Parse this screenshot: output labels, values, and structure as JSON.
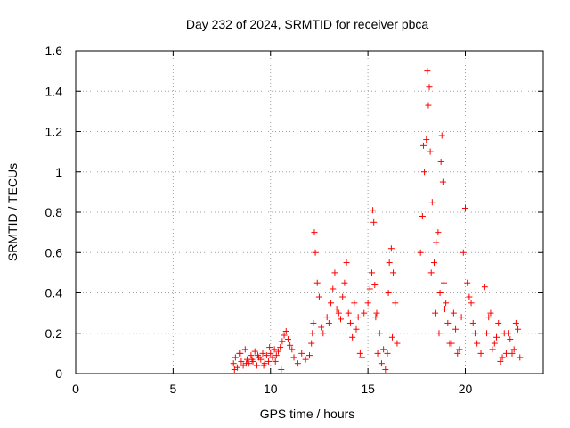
{
  "chart_data": {
    "type": "scatter",
    "title": "Day 232 of 2024, SRMTID for receiver pbca",
    "xlabel": "GPS time / hours",
    "ylabel": "SRMTID / TECUs",
    "xlim": [
      0,
      24
    ],
    "ylim": [
      0,
      1.6
    ],
    "xticks": [
      0,
      5,
      10,
      15,
      20
    ],
    "xtick_labels": [
      "0",
      "5",
      "10",
      "15",
      "20"
    ],
    "yticks": [
      0,
      0.2,
      0.4,
      0.6,
      0.8,
      1,
      1.2,
      1.4,
      1.6
    ],
    "ytick_labels": [
      "0",
      "0.2",
      "0.4",
      "0.6",
      "0.8",
      "1",
      "1.2",
      "1.4",
      "1.6"
    ],
    "grid": true,
    "marker": "+",
    "color": "#ff0000",
    "series": [
      {
        "name": "pbca",
        "x": [
          8.1,
          8.2,
          8.3,
          8.4,
          8.5,
          8.6,
          8.7,
          8.8,
          8.9,
          9.0,
          9.1,
          9.2,
          9.3,
          9.4,
          9.5,
          9.6,
          9.7,
          9.8,
          9.9,
          10.0,
          10.1,
          10.2,
          10.3,
          10.4,
          10.5,
          10.6,
          10.7,
          10.8,
          10.9,
          11.0,
          11.1,
          11.2,
          11.4,
          11.6,
          11.8,
          12.0,
          12.1,
          12.2,
          12.25,
          12.3,
          12.4,
          12.5,
          12.7,
          12.9,
          13.0,
          13.1,
          13.2,
          13.3,
          13.5,
          13.7,
          13.8,
          13.9,
          14.0,
          14.1,
          14.2,
          14.4,
          14.6,
          14.8,
          15.0,
          15.1,
          15.2,
          15.25,
          15.3,
          15.4,
          15.5,
          15.6,
          15.7,
          15.8,
          15.9,
          16.0,
          16.1,
          16.2,
          16.3,
          16.4,
          16.5,
          17.7,
          17.8,
          17.85,
          17.9,
          18.0,
          18.05,
          18.1,
          18.15,
          18.2,
          18.3,
          18.4,
          18.5,
          18.6,
          18.7,
          18.75,
          18.8,
          18.85,
          18.9,
          19.0,
          19.2,
          19.4,
          19.6,
          19.8,
          19.9,
          20.0,
          20.1,
          20.2,
          20.4,
          20.6,
          20.8,
          21.0,
          21.1,
          21.3,
          21.5,
          21.7,
          21.9,
          22.0,
          22.1,
          22.3,
          22.5,
          22.6,
          22.7,
          22.8,
          8.15,
          8.45,
          8.75,
          9.05,
          9.35,
          9.65,
          9.95,
          10.25,
          10.55,
          12.15,
          12.6,
          13.4,
          13.6,
          14.3,
          14.5,
          14.7,
          15.35,
          15.45,
          16.05,
          16.25,
          18.25,
          18.45,
          18.65,
          18.95,
          19.1,
          19.3,
          19.5,
          19.7,
          20.3,
          20.5,
          21.2,
          21.4,
          21.6,
          21.8,
          22.2,
          22.4
        ],
        "y": [
          0.05,
          0.08,
          0.03,
          0.1,
          0.06,
          0.04,
          0.12,
          0.07,
          0.05,
          0.09,
          0.06,
          0.11,
          0.04,
          0.08,
          0.07,
          0.1,
          0.05,
          0.09,
          0.06,
          0.1,
          0.08,
          0.12,
          0.09,
          0.11,
          0.13,
          0.16,
          0.19,
          0.21,
          0.17,
          0.14,
          0.12,
          0.08,
          0.05,
          0.1,
          0.07,
          0.09,
          0.15,
          0.25,
          0.7,
          0.6,
          0.45,
          0.38,
          0.2,
          0.28,
          0.25,
          0.35,
          0.42,
          0.5,
          0.3,
          0.38,
          0.45,
          0.55,
          0.3,
          0.25,
          0.18,
          0.22,
          0.1,
          0.3,
          0.35,
          0.42,
          0.5,
          0.81,
          0.75,
          0.28,
          0.1,
          0.2,
          0.05,
          0.12,
          0.02,
          0.1,
          0.55,
          0.62,
          0.5,
          0.35,
          0.15,
          0.6,
          0.78,
          1.13,
          1.0,
          1.16,
          1.5,
          1.33,
          1.42,
          1.1,
          0.85,
          0.55,
          0.65,
          0.7,
          0.4,
          1.05,
          1.18,
          0.95,
          0.45,
          0.35,
          0.15,
          0.3,
          0.1,
          0.28,
          0.6,
          0.82,
          0.45,
          0.38,
          0.25,
          0.15,
          0.1,
          0.43,
          0.2,
          0.3,
          0.15,
          0.25,
          0.08,
          0.2,
          0.1,
          0.17,
          0.12,
          0.25,
          0.22,
          0.08,
          0.02,
          0.1,
          0.05,
          0.07,
          0.09,
          0.04,
          0.13,
          0.06,
          0.02,
          0.2,
          0.23,
          0.32,
          0.27,
          0.35,
          0.28,
          0.08,
          0.44,
          0.3,
          0.4,
          0.18,
          0.5,
          0.3,
          0.2,
          0.32,
          0.25,
          0.15,
          0.22,
          0.12,
          0.35,
          0.2,
          0.28,
          0.12,
          0.18,
          0.06,
          0.2,
          0.1
        ]
      }
    ]
  }
}
